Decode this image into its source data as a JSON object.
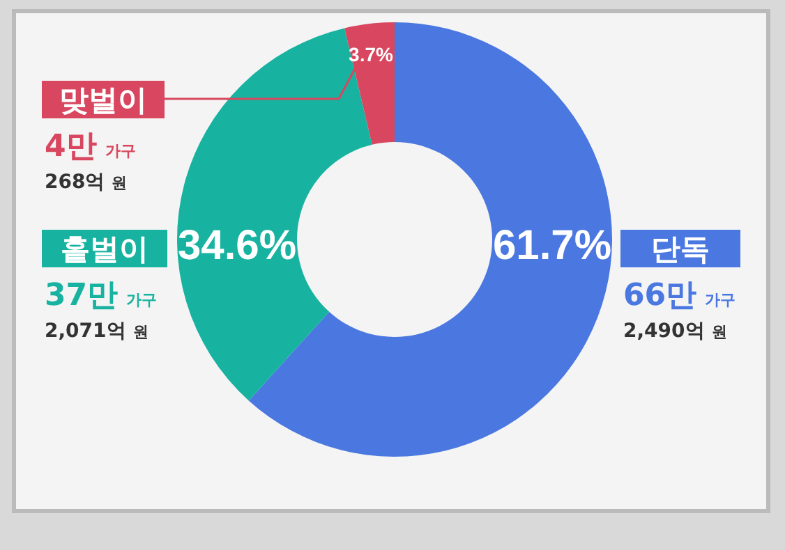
{
  "chart_data": {
    "type": "donut",
    "categories": [
      "단독",
      "홑벌이",
      "맞벌이"
    ],
    "values": [
      61.7,
      34.6,
      3.7
    ],
    "colors": [
      "#4a78e0",
      "#17b3a0",
      "#d8475f"
    ],
    "value_labels": [
      "61.7%",
      "34.6%",
      "3.7%"
    ],
    "annotations": [
      "66만 가구",
      "2,490억 원",
      "37만 가구",
      "2,071억 원",
      "4만 가구",
      "268억 원"
    ]
  }
}
